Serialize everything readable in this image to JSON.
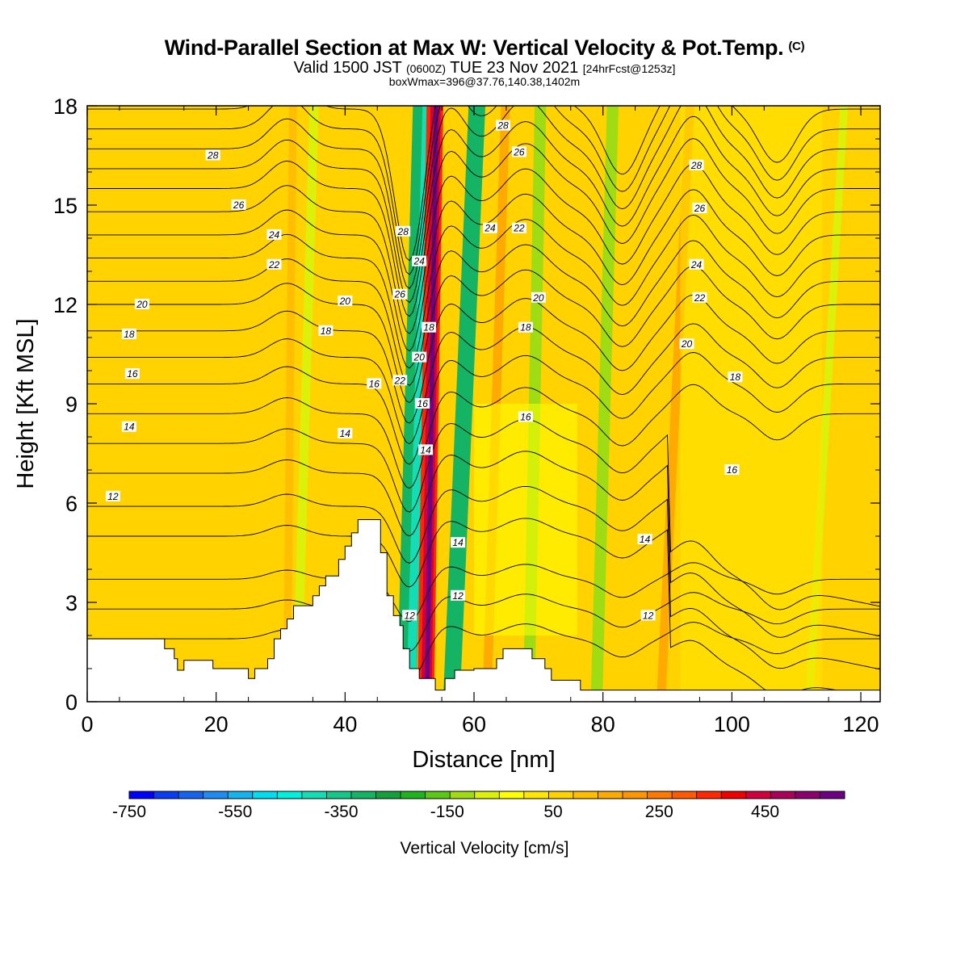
{
  "header": {
    "title": "Wind-Parallel Section at Max W: Vertical Velocity & Pot.Temp.",
    "title_mark": "(C)",
    "valid_prefix": "Valid 1500 JST",
    "valid_utc": "(0600Z)",
    "valid_date": "TUE 23 Nov 2021",
    "forecast": "[24hrFcst@1253z]",
    "boxwmax": "boxWmax=396@37.76,140.38,1402m"
  },
  "chart_data": {
    "type": "heatmap",
    "xlabel": "Distance [nm]",
    "ylabel": "Height [Kft MSL]",
    "xlim": [
      0,
      123
    ],
    "ylim": [
      0,
      18
    ],
    "x_ticks": [
      0,
      20,
      40,
      60,
      80,
      100,
      120
    ],
    "y_ticks": [
      0,
      3,
      6,
      9,
      12,
      15,
      18
    ],
    "colorbar": {
      "title": "Vertical Velocity [cm/s]",
      "min": -750,
      "max": 600,
      "step": 50,
      "labels": [
        -750,
        -550,
        -350,
        -150,
        50,
        250,
        450
      ],
      "colors": [
        "#0000ff",
        "#0a3cf5",
        "#1464f0",
        "#1e8cf0",
        "#14b4f0",
        "#00dcf0",
        "#00f0dc",
        "#14dcb4",
        "#14c88c",
        "#14b464",
        "#14a03c",
        "#1eb41e",
        "#5ac814",
        "#a0dc14",
        "#dcf00a",
        "#ffff00",
        "#ffe600",
        "#ffd200",
        "#ffbe00",
        "#ffaa00",
        "#ff9600",
        "#ff7800",
        "#ff5a00",
        "#ff2800",
        "#f00000",
        "#d2003c",
        "#aa005a",
        "#8c006e",
        "#6e0082"
      ]
    },
    "contour_levels": [
      12,
      14,
      16,
      18,
      20,
      22,
      24,
      26,
      28
    ],
    "contour_labels": [
      {
        "x": 4,
        "y": 6.2,
        "text": "12"
      },
      {
        "x": 6.5,
        "y": 8.3,
        "text": "14"
      },
      {
        "x": 7,
        "y": 9.9,
        "text": "16"
      },
      {
        "x": 6.5,
        "y": 11.1,
        "text": "18"
      },
      {
        "x": 8.5,
        "y": 12.0,
        "text": "20"
      },
      {
        "x": 19.5,
        "y": 16.5,
        "text": "28"
      },
      {
        "x": 23.5,
        "y": 15.0,
        "text": "26"
      },
      {
        "x": 29,
        "y": 14.1,
        "text": "24"
      },
      {
        "x": 29,
        "y": 13.2,
        "text": "22"
      },
      {
        "x": 40,
        "y": 12.1,
        "text": "20"
      },
      {
        "x": 37,
        "y": 11.2,
        "text": "18"
      },
      {
        "x": 40,
        "y": 8.1,
        "text": "14"
      },
      {
        "x": 44.5,
        "y": 9.6,
        "text": "16"
      },
      {
        "x": 48.5,
        "y": 9.7,
        "text": "22"
      },
      {
        "x": 48.5,
        "y": 12.3,
        "text": "26"
      },
      {
        "x": 49,
        "y": 14.2,
        "text": "28"
      },
      {
        "x": 51.5,
        "y": 13.3,
        "text": "24"
      },
      {
        "x": 53,
        "y": 11.3,
        "text": "18"
      },
      {
        "x": 51.5,
        "y": 10.4,
        "text": "20"
      },
      {
        "x": 52,
        "y": 9.0,
        "text": "16"
      },
      {
        "x": 52.5,
        "y": 7.6,
        "text": "14"
      },
      {
        "x": 50,
        "y": 2.6,
        "text": "12"
      },
      {
        "x": 57.5,
        "y": 4.8,
        "text": "14"
      },
      {
        "x": 57.5,
        "y": 3.2,
        "text": "12"
      },
      {
        "x": 64.5,
        "y": 17.4,
        "text": "28"
      },
      {
        "x": 67,
        "y": 16.6,
        "text": "26"
      },
      {
        "x": 62.5,
        "y": 14.3,
        "text": "24"
      },
      {
        "x": 67,
        "y": 14.3,
        "text": "22"
      },
      {
        "x": 70,
        "y": 12.2,
        "text": "20"
      },
      {
        "x": 68,
        "y": 11.3,
        "text": "18"
      },
      {
        "x": 68,
        "y": 8.6,
        "text": "16"
      },
      {
        "x": 94.5,
        "y": 16.2,
        "text": "28"
      },
      {
        "x": 95,
        "y": 14.9,
        "text": "26"
      },
      {
        "x": 94.5,
        "y": 13.2,
        "text": "24"
      },
      {
        "x": 95,
        "y": 12.2,
        "text": "22"
      },
      {
        "x": 93,
        "y": 10.8,
        "text": "20"
      },
      {
        "x": 100.5,
        "y": 9.8,
        "text": "18"
      },
      {
        "x": 100,
        "y": 7.0,
        "text": "16"
      },
      {
        "x": 86.5,
        "y": 4.9,
        "text": "14"
      },
      {
        "x": 87,
        "y": 2.6,
        "text": "12"
      }
    ],
    "terrain": [
      [
        0,
        1.9
      ],
      [
        12,
        1.9
      ],
      [
        12,
        1.6
      ],
      [
        13.5,
        1.6
      ],
      [
        13.5,
        1.3
      ],
      [
        14,
        1.3
      ],
      [
        14,
        0.95
      ],
      [
        15,
        0.95
      ],
      [
        15,
        1.25
      ],
      [
        19.5,
        1.25
      ],
      [
        19.5,
        1.0
      ],
      [
        25,
        1.0
      ],
      [
        25,
        0.7
      ],
      [
        26,
        0.7
      ],
      [
        26,
        1.0
      ],
      [
        28,
        1.0
      ],
      [
        28,
        1.3
      ],
      [
        29,
        1.3
      ],
      [
        29,
        1.9
      ],
      [
        30,
        1.9
      ],
      [
        30,
        2.2
      ],
      [
        31,
        2.2
      ],
      [
        31,
        2.5
      ],
      [
        32,
        2.5
      ],
      [
        32,
        2.9
      ],
      [
        35,
        2.9
      ],
      [
        35,
        3.2
      ],
      [
        36,
        3.2
      ],
      [
        36,
        3.5
      ],
      [
        37,
        3.5
      ],
      [
        37,
        3.8
      ],
      [
        39,
        3.8
      ],
      [
        39,
        4.3
      ],
      [
        40,
        4.3
      ],
      [
        40,
        4.7
      ],
      [
        41,
        4.7
      ],
      [
        41,
        5.1
      ],
      [
        42,
        5.1
      ],
      [
        42,
        5.5
      ],
      [
        45.5,
        5.5
      ],
      [
        45.5,
        4.5
      ],
      [
        46.5,
        4.5
      ],
      [
        46.5,
        3.2
      ],
      [
        47.5,
        3.2
      ],
      [
        47.5,
        2.6
      ],
      [
        48.5,
        2.6
      ],
      [
        48.5,
        2.3
      ],
      [
        49,
        2.3
      ],
      [
        49,
        1.6
      ],
      [
        50,
        1.6
      ],
      [
        50,
        1.0
      ],
      [
        51.5,
        1.0
      ],
      [
        51.5,
        0.7
      ],
      [
        54,
        0.7
      ],
      [
        54,
        0.35
      ],
      [
        55.5,
        0.35
      ],
      [
        55.5,
        0.7
      ],
      [
        57,
        0.7
      ],
      [
        57,
        0.95
      ],
      [
        60,
        0.95
      ],
      [
        60,
        1.0
      ],
      [
        63.5,
        1.0
      ],
      [
        63.5,
        1.3
      ],
      [
        64.5,
        1.3
      ],
      [
        64.5,
        1.6
      ],
      [
        69,
        1.6
      ],
      [
        69,
        1.3
      ],
      [
        71,
        1.3
      ],
      [
        71,
        1.0
      ],
      [
        72,
        1.0
      ],
      [
        72,
        0.65
      ],
      [
        76.5,
        0.65
      ],
      [
        76.5,
        0.35
      ],
      [
        123,
        0.35
      ],
      [
        123,
        0
      ],
      [
        0,
        0
      ]
    ]
  }
}
